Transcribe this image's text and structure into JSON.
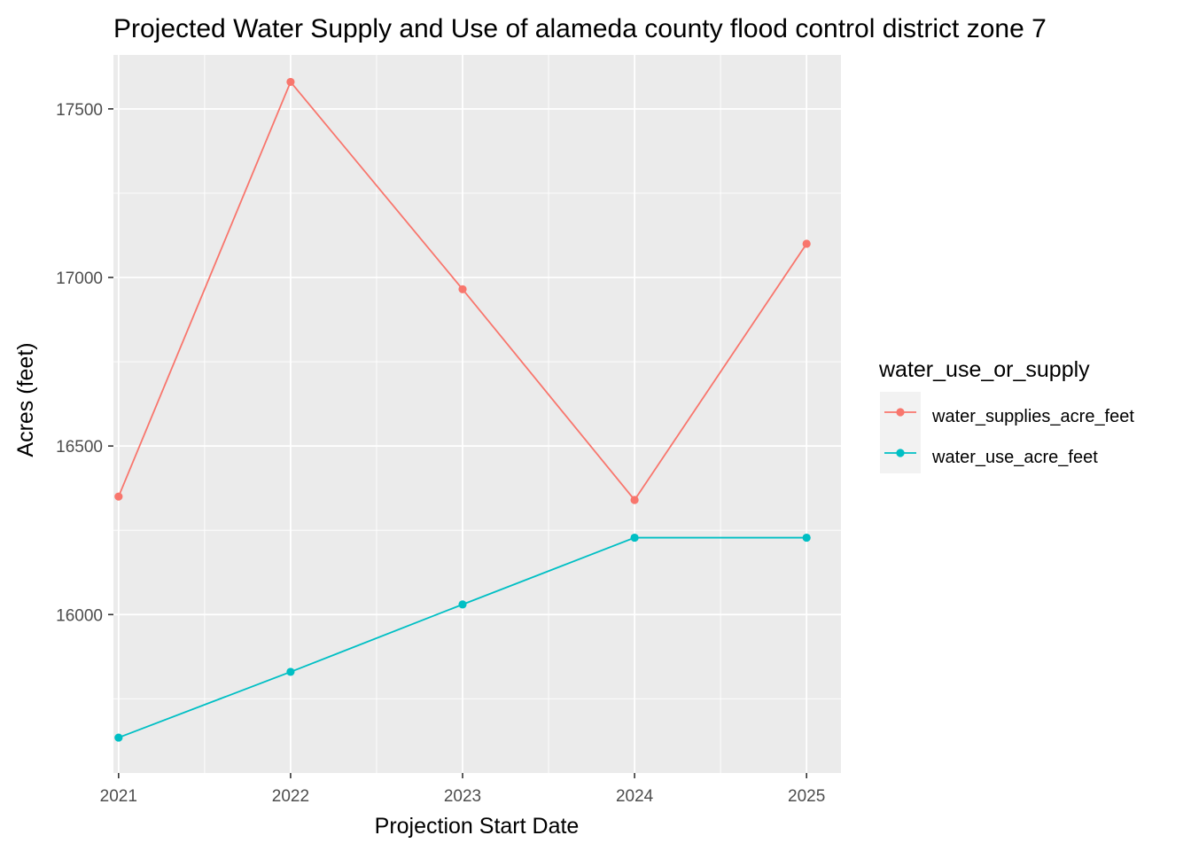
{
  "chart_data": {
    "type": "line",
    "title": "Projected Water Supply and Use of alameda county flood control district  zone 7",
    "xlabel": "Projection Start Date",
    "ylabel": "Acres (feet)",
    "x": [
      2021,
      2022,
      2023,
      2024,
      2025
    ],
    "x_tick_labels": [
      "2021",
      "2022",
      "2023",
      "2024",
      "2025"
    ],
    "y_ticks": [
      16000,
      16500,
      17000,
      17500
    ],
    "y_tick_labels": [
      "16000",
      "16500",
      "17000",
      "17500"
    ],
    "xlim": [
      2020.97,
      2025.2
    ],
    "ylim": [
      15530,
      17660
    ],
    "grid": true,
    "legend": {
      "title": "water_use_or_supply",
      "placement": "right"
    },
    "series": [
      {
        "name": "water_supplies_acre_feet",
        "color": "#F8766D",
        "values": [
          16350,
          17580,
          16965,
          16340,
          17100
        ]
      },
      {
        "name": "water_use_acre_feet",
        "color": "#00BFC4",
        "values": [
          15635,
          15830,
          16030,
          16228,
          16228
        ]
      }
    ]
  }
}
